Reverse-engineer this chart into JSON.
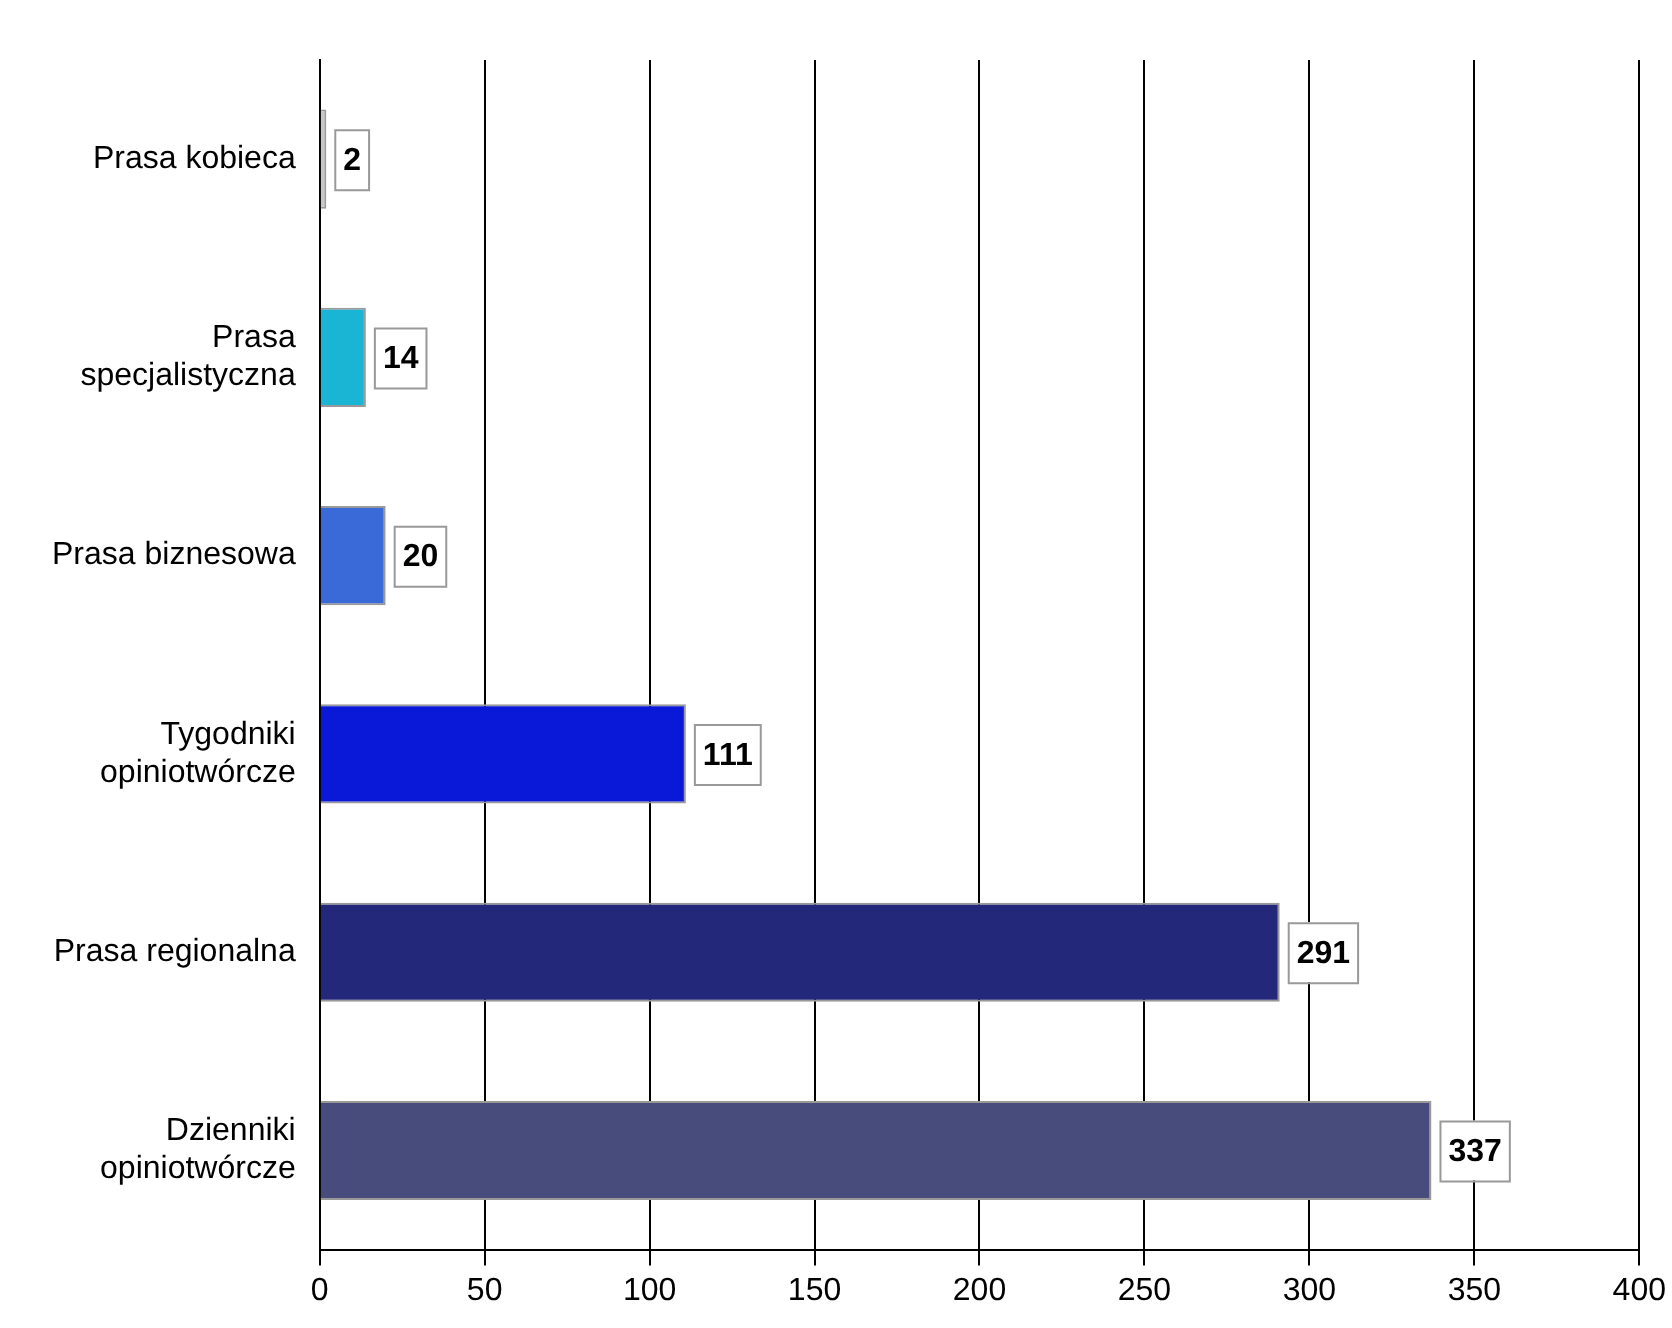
{
  "chart_data": {
    "type": "bar",
    "orientation": "horizontal",
    "categories": [
      "Prasa kobieca",
      "Prasa specjalistyczna",
      "Prasa biznesowa",
      "Tygodniki opiniotwórcze",
      "Prasa regionalna",
      "Dzienniki opiniotwórcze"
    ],
    "values": [
      2,
      14,
      20,
      111,
      291,
      337
    ],
    "colors": [
      "#c8c8c8",
      "#1ab4d4",
      "#3a6ad8",
      "#0a18d8",
      "#24287a",
      "#484c7c"
    ],
    "xlim": [
      0,
      400
    ],
    "xticks": [
      0,
      50,
      100,
      150,
      200,
      250,
      300,
      350,
      400
    ],
    "grid": "x",
    "data_labels": true,
    "legend": false
  }
}
